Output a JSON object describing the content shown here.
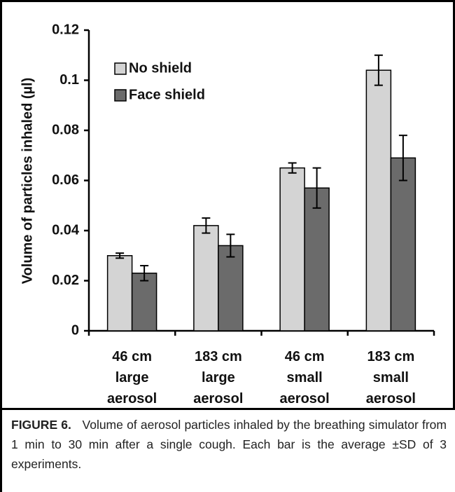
{
  "chart_data": {
    "type": "bar",
    "y_label": "Volume of particles inhaled (µl)",
    "categories": [
      "46 cm\nlarge\naerosol",
      "183 cm\nlarge\naerosol",
      "46 cm\nsmall\naerosol",
      "183 cm\nsmall\naerosol"
    ],
    "series": [
      {
        "name": "No shield",
        "color": "#d4d4d4",
        "values": [
          0.03,
          0.042,
          0.065,
          0.104
        ],
        "errors": [
          0.001,
          0.003,
          0.002,
          0.006
        ]
      },
      {
        "name": "Face shield",
        "color": "#6b6b6b",
        "values": [
          0.023,
          0.034,
          0.057,
          0.069
        ],
        "errors": [
          0.003,
          0.0045,
          0.008,
          0.009
        ]
      }
    ],
    "ylim": [
      0,
      0.12
    ],
    "yticks": [
      0,
      0.02,
      0.04,
      0.06,
      0.08,
      0.1,
      0.12
    ],
    "legend": "upper left",
    "grid": false
  },
  "caption_label": "FIGURE 6.",
  "caption": "Volume of aerosol particles inhaled by the breathing simulator from 1 min to 30 min after a single cough. Each bar is the average ±SD of 3 experiments."
}
